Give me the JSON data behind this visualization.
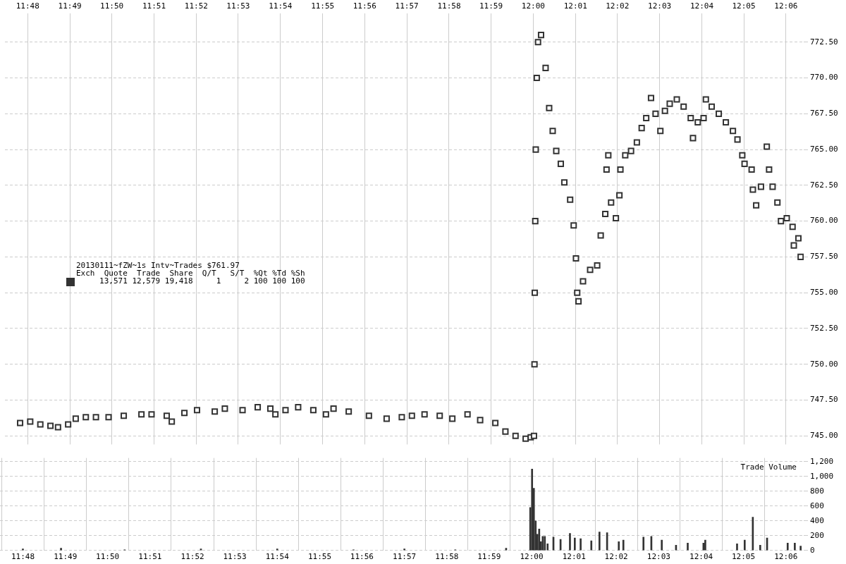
{
  "chart_data": [
    {
      "type": "scatter",
      "marker": "square",
      "color": "#333333",
      "grid": true,
      "legend": false,
      "annotations": [
        "20130111~fZW~1s Intv~Trades $761.97",
        "Exch  Quote  Trade  Share  Q/T   S/T  %Qt %Td %Sh",
        "     13,571 12,579 19,418     1     2 100 100 100"
      ],
      "xlim": [
        11.791,
        12.107
      ],
      "xticks": [
        {
          "value": 11.8,
          "label": "11:48"
        },
        {
          "value": 11.8167,
          "label": "11:49"
        },
        {
          "value": 11.8333,
          "label": "11:50"
        },
        {
          "value": 11.85,
          "label": "11:51"
        },
        {
          "value": 11.8667,
          "label": "11:52"
        },
        {
          "value": 11.8833,
          "label": "11:53"
        },
        {
          "value": 11.9,
          "label": "11:54"
        },
        {
          "value": 11.9167,
          "label": "11:55"
        },
        {
          "value": 11.9333,
          "label": "11:56"
        },
        {
          "value": 11.95,
          "label": "11:57"
        },
        {
          "value": 11.9667,
          "label": "11:58"
        },
        {
          "value": 11.9833,
          "label": "11:59"
        },
        {
          "value": 12,
          "label": "12:00"
        },
        {
          "value": 12.0167,
          "label": "12:01"
        },
        {
          "value": 12.0333,
          "label": "12:02"
        },
        {
          "value": 12.05,
          "label": "12:03"
        },
        {
          "value": 12.0667,
          "label": "12:04"
        },
        {
          "value": 12.0833,
          "label": "12:05"
        },
        {
          "value": 12.1,
          "label": "12:06"
        }
      ],
      "ylim": [
        744.4,
        774.5
      ],
      "yticks": [
        {
          "value": 745,
          "label": "745.00"
        },
        {
          "value": 747.5,
          "label": "747.50"
        },
        {
          "value": 750,
          "label": "750.00"
        },
        {
          "value": 752.5,
          "label": "752.50"
        },
        {
          "value": 755,
          "label": "755.00"
        },
        {
          "value": 757.5,
          "label": "757.50"
        },
        {
          "value": 760,
          "label": "760.00"
        },
        {
          "value": 762.5,
          "label": "762.50"
        },
        {
          "value": 765,
          "label": "765.00"
        },
        {
          "value": 767.5,
          "label": "767.50"
        },
        {
          "value": 770,
          "label": "770.00"
        },
        {
          "value": 772.5,
          "label": "772.50"
        }
      ],
      "x": [
        11.797,
        11.801,
        11.805,
        11.809,
        11.812,
        11.816,
        11.819,
        11.823,
        11.827,
        11.832,
        11.838,
        11.845,
        11.849,
        11.855,
        11.857,
        11.862,
        11.867,
        11.874,
        11.878,
        11.885,
        11.891,
        11.896,
        11.898,
        11.902,
        11.907,
        11.913,
        11.918,
        11.921,
        11.927,
        11.935,
        11.942,
        11.948,
        11.952,
        11.957,
        11.963,
        11.968,
        11.974,
        11.979,
        11.985,
        11.989,
        11.993,
        11.997,
        11.999,
        12.0003,
        12.0005,
        12.0006,
        12.0008,
        12.001,
        12.0014,
        12.0019,
        12.0031,
        12.0049,
        12.0063,
        12.0077,
        12.0091,
        12.0109,
        12.0123,
        12.0146,
        12.016,
        12.0169,
        12.0174,
        12.0179,
        12.0197,
        12.0225,
        12.0253,
        12.0267,
        12.0285,
        12.029,
        12.0297,
        12.0308,
        12.0327,
        12.0341,
        12.0345,
        12.0364,
        12.0387,
        12.041,
        12.0429,
        12.0447,
        12.0466,
        12.0484,
        12.0503,
        12.0521,
        12.054,
        12.0568,
        12.0595,
        12.0623,
        12.0632,
        12.0651,
        12.0674,
        12.0683,
        12.0706,
        12.0734,
        12.0762,
        12.079,
        12.0808,
        12.0827,
        12.0836,
        12.0864,
        12.0869,
        12.0882,
        12.0901,
        12.0924,
        12.0933,
        12.0947,
        12.0966,
        12.098,
        12.1003,
        12.1026,
        12.1031,
        12.1049,
        12.1058
      ],
      "values": [
        745.9,
        746.0,
        745.8,
        745.7,
        745.6,
        745.8,
        746.2,
        746.3,
        746.3,
        746.3,
        746.4,
        746.5,
        746.5,
        746.4,
        746.0,
        746.6,
        746.8,
        746.7,
        746.9,
        746.8,
        747.0,
        746.9,
        746.5,
        746.8,
        747.0,
        746.8,
        746.5,
        746.9,
        746.7,
        746.4,
        746.2,
        746.3,
        746.4,
        746.5,
        746.4,
        746.2,
        746.5,
        746.1,
        745.9,
        745.3,
        745.0,
        744.8,
        744.9,
        745.0,
        750.0,
        755.0,
        760.0,
        765.0,
        770.0,
        772.5,
        773.0,
        770.7,
        767.9,
        766.3,
        764.9,
        764.0,
        762.7,
        761.5,
        759.7,
        757.4,
        755.0,
        754.4,
        755.8,
        756.6,
        756.9,
        759.0,
        760.5,
        763.6,
        764.6,
        761.3,
        760.2,
        761.8,
        763.6,
        764.6,
        764.9,
        765.5,
        766.5,
        767.2,
        768.6,
        767.5,
        766.3,
        767.7,
        768.2,
        768.5,
        768.0,
        767.2,
        765.8,
        766.9,
        767.2,
        768.5,
        768.0,
        767.5,
        766.9,
        766.3,
        765.7,
        764.6,
        764.0,
        763.6,
        762.2,
        761.1,
        762.4,
        765.2,
        763.6,
        762.4,
        761.3,
        760.0,
        760.2,
        759.6,
        758.3,
        758.8,
        757.5
      ]
    },
    {
      "type": "bar",
      "title": "Trade Volume",
      "color": "#333333",
      "grid": true,
      "legend": false,
      "xlim": [
        11.791,
        12.107
      ],
      "xticks": [
        {
          "value": 11.8,
          "label": "11:48"
        },
        {
          "value": 11.8167,
          "label": "11:49"
        },
        {
          "value": 11.8333,
          "label": "11:50"
        },
        {
          "value": 11.85,
          "label": "11:51"
        },
        {
          "value": 11.8667,
          "label": "11:52"
        },
        {
          "value": 11.8833,
          "label": "11:53"
        },
        {
          "value": 11.9,
          "label": "11:54"
        },
        {
          "value": 11.9167,
          "label": "11:55"
        },
        {
          "value": 11.9333,
          "label": "11:56"
        },
        {
          "value": 11.95,
          "label": "11:57"
        },
        {
          "value": 11.9667,
          "label": "11:58"
        },
        {
          "value": 11.9833,
          "label": "11:59"
        },
        {
          "value": 12,
          "label": "12:00"
        },
        {
          "value": 12.0167,
          "label": "12:01"
        },
        {
          "value": 12.0333,
          "label": "12:02"
        },
        {
          "value": 12.05,
          "label": "12:03"
        },
        {
          "value": 12.0667,
          "label": "12:04"
        },
        {
          "value": 12.0833,
          "label": "12:05"
        },
        {
          "value": 12.1,
          "label": "12:06"
        }
      ],
      "ylim": [
        0,
        1250
      ],
      "yticks": [
        0,
        200,
        400,
        600,
        800,
        {
          "value": 1000,
          "label": "1,000"
        },
        {
          "value": 1200,
          "label": "1,200"
        }
      ],
      "x": [
        11.8,
        11.815,
        11.84,
        11.87,
        11.9,
        11.93,
        11.95,
        11.97,
        11.99,
        11.9995,
        12.0002,
        12.0009,
        12.0016,
        12.0023,
        12.003,
        12.0037,
        12.0044,
        12.0052,
        12.0063,
        12.0086,
        12.0114,
        12.0151,
        12.017,
        12.0193,
        12.0235,
        12.0267,
        12.0297,
        12.0343,
        12.0361,
        12.044,
        12.0471,
        12.0512,
        12.0568,
        12.0614,
        12.0676,
        12.0683,
        12.0808,
        12.0838,
        12.087,
        12.0899,
        12.0926,
        12.1007,
        12.1035,
        12.1058
      ],
      "values": [
        20,
        30,
        10,
        20,
        20,
        10,
        20,
        10,
        30,
        580,
        1100,
        840,
        400,
        220,
        290,
        120,
        190,
        190,
        90,
        180,
        150,
        230,
        170,
        160,
        130,
        250,
        240,
        120,
        140,
        180,
        190,
        140,
        70,
        100,
        100,
        140,
        90,
        140,
        450,
        70,
        170,
        100,
        100,
        60
      ]
    }
  ]
}
